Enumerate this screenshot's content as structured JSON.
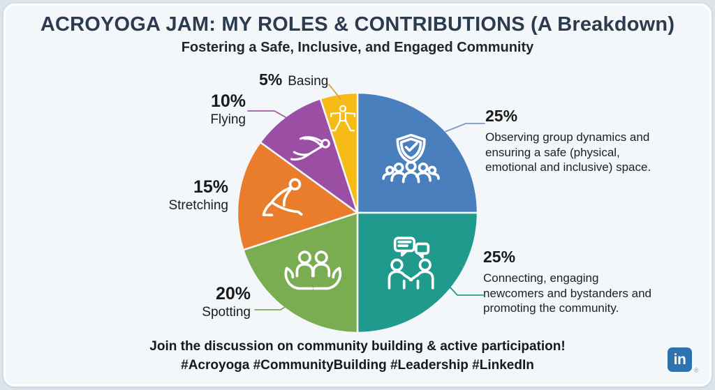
{
  "header": {
    "title": "ACROYOGA JAM: MY ROLES & CONTRIBUTIONS (A Breakdown)",
    "subtitle": "Fostering a Safe, Inclusive, and Engaged Community"
  },
  "chart_data": {
    "type": "pie",
    "title": "ACROYOGA JAM: MY ROLES & CONTRIBUTIONS (A Breakdown)",
    "subtitle": "Fostering a Safe, Inclusive, and Engaged Community",
    "start_angle_deg": 0,
    "direction": "clockwise",
    "categories": [
      "Observing / Safety",
      "Connecting",
      "Spotting",
      "Stretching",
      "Flying",
      "Basing"
    ],
    "values": [
      25,
      25,
      20,
      15,
      10,
      5
    ],
    "slices": [
      {
        "id": "observing",
        "label": "Observing / Safety",
        "value": 25,
        "pct_label": "25%",
        "color": "#4a7fbe",
        "leader_color": "#7d99c5",
        "icon": "shield-check-group-icon",
        "desc_lines": [
          "Observing group dynamics and",
          "ensuring a safe (physical,",
          "emotional and inclusive) space."
        ]
      },
      {
        "id": "connecting",
        "label": "Connecting",
        "value": 25,
        "pct_label": "25%",
        "color": "#219a8e",
        "leader_color": "#219a8e",
        "icon": "handshake-speech-bubbles-icon",
        "desc_lines": [
          "Connecting, engaging",
          "newcomers and bystanders and",
          "promoting the community."
        ]
      },
      {
        "id": "spotting",
        "label": "Spotting",
        "value": 20,
        "pct_label": "20%",
        "name_label": "Spotting",
        "color": "#7aad52",
        "leader_color": "#7aad52",
        "icon": "caring-hands-people-icon"
      },
      {
        "id": "stretching",
        "label": "Stretching",
        "value": 15,
        "pct_label": "15%",
        "name_label": "Stretching",
        "color": "#ea7d2c",
        "leader_color": "#ea7d2c",
        "icon": "stretching-person-icon"
      },
      {
        "id": "flying",
        "label": "Flying",
        "value": 10,
        "pct_label": "10%",
        "name_label": "Flying",
        "color": "#9b4fa4",
        "leader_color": "#a05ba5",
        "icon": "flying-person-icon"
      },
      {
        "id": "basing",
        "label": "Basing",
        "value": 5,
        "pct_label": "5%",
        "name_label": "Basing",
        "color": "#f6bc15",
        "leader_color": "#dfa23f",
        "icon": "standing-pose-person-icon"
      }
    ]
  },
  "footer": {
    "line1": "Join the discussion on community building & active participation!",
    "hashtags": "#Acroyoga #CommunityBuilding #Leadership #LinkedIn",
    "linkedin": {
      "text": "in",
      "registered": "®",
      "color": "#2f72ad"
    }
  }
}
